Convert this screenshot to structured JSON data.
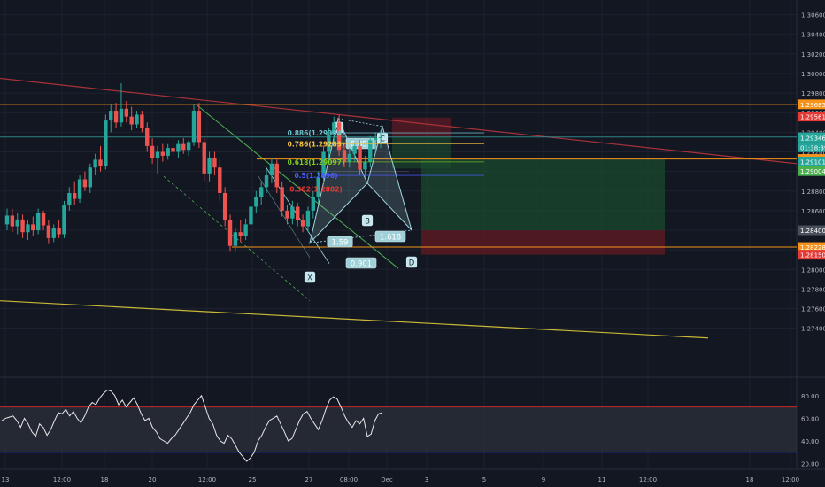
{
  "chart_data": {
    "type": "candlestick",
    "title": "",
    "xlabel": "",
    "ylabel": "",
    "colors": {
      "background": "#131722",
      "grid": "#1e2230",
      "axis_text": "#b2b5be",
      "up": "#26a69a",
      "down": "#ef5350",
      "orange": "#f7931a",
      "red": "#e53935",
      "green": "#4caf50",
      "trend_red": "#a8323a",
      "trend_yellow": "#c8b838",
      "harmonic_fill": "#9fd8e0",
      "rsi_line": "#e8e8e8",
      "rsi_upper": "#c62828",
      "rsi_lower": "#1e3fd8",
      "rsi_band": "#2a2e39"
    },
    "price_axis": {
      "ylim": [
        1.269,
        1.3075
      ],
      "ticks": [
        "1.30600",
        "1.30400",
        "1.30200",
        "1.30000",
        "1.29800",
        "1.29600",
        "1.29400",
        "1.29200",
        "1.29000",
        "1.28800",
        "1.28600",
        "1.28400",
        "1.28200",
        "1.28000",
        "1.27800",
        "1.27600",
        "1.27400"
      ],
      "labels": [
        {
          "text": "1.29685",
          "value": 1.29685,
          "color": "#f7931a"
        },
        {
          "text": "1.29561",
          "value": 1.29561,
          "color": "#e53935"
        },
        {
          "text": "1.29352",
          "value": 1.29352,
          "color": "#2f5d62"
        },
        {
          "text": "1.29346",
          "value": 1.29346,
          "color": "#26a69a"
        },
        {
          "text": "01:38:39",
          "value": 1.29247,
          "color": "#26a69a"
        },
        {
          "text": "1.29127",
          "value": 1.29127,
          "color": "#f7931a"
        },
        {
          "text": "1.29101",
          "value": 1.29101,
          "color": "#26a69a"
        },
        {
          "text": "1.29004",
          "value": 1.29004,
          "color": "#4caf50"
        },
        {
          "text": "1.28400",
          "value": 1.284,
          "color": "#4a4f5c"
        },
        {
          "text": "1.28228",
          "value": 1.28228,
          "color": "#f7931a"
        },
        {
          "text": "1.28150",
          "value": 1.2815,
          "color": "#e53935"
        }
      ]
    },
    "time_axis": {
      "labels": [
        "13",
        "12:00",
        "18",
        "20",
        "12:00",
        "25",
        "27",
        "08:00",
        "Dec",
        "3",
        "5",
        "9",
        "11",
        "12:00",
        "18",
        "12:00"
      ]
    },
    "horizontal_levels": [
      {
        "name": "upper-orange-level",
        "value": 1.29685,
        "color": "#f7931a"
      },
      {
        "name": "mid-orange-level",
        "value": 1.29127,
        "color": "#f7931a"
      },
      {
        "name": "lower-orange-level",
        "value": 1.28228,
        "color": "#f7931a"
      },
      {
        "name": "current-price-line",
        "value": 1.29352,
        "color": "#2f8f8f"
      }
    ],
    "fib_labels": [
      {
        "text": "0.886(1.29394)",
        "value": 1.29394,
        "color": "#6fc0c8"
      },
      {
        "text": "0.786(1.29283)",
        "value": 1.29283,
        "color": "#f5c542"
      },
      {
        "text": "0.618(1.29097)",
        "value": 1.29097,
        "color": "#7ecb20"
      },
      {
        "text": "0.5(1.2896)",
        "value": 1.2896,
        "color": "#4a5cff"
      },
      {
        "text": "0.382(1.2882)",
        "value": 1.2882,
        "color": "#e53935"
      }
    ],
    "pattern_points": [
      "X",
      "A",
      "B",
      "C",
      "D"
    ],
    "pattern_ratios": [
      "0.853",
      "1.59",
      "0.901",
      "1.618"
    ],
    "rsi": {
      "ylim": [
        15,
        90
      ],
      "ticks": [
        "80.00",
        "60.00",
        "40.00",
        "20.00"
      ],
      "upper": 70,
      "lower": 30,
      "values": [
        58,
        60,
        61,
        62,
        58,
        52,
        60,
        55,
        48,
        44,
        55,
        52,
        45,
        50,
        58,
        65,
        64,
        68,
        62,
        66,
        60,
        56,
        62,
        70,
        74,
        72,
        78,
        82,
        85,
        84,
        80,
        72,
        76,
        70,
        74,
        78,
        72,
        64,
        58,
        60,
        52,
        48,
        42,
        40,
        38,
        42,
        45,
        50,
        55,
        60,
        65,
        72,
        76,
        80,
        70,
        60,
        55,
        45,
        40,
        38,
        45,
        42,
        36,
        30,
        26,
        22,
        25,
        30,
        40,
        45,
        52,
        58,
        60,
        62,
        55,
        48,
        40,
        42,
        50,
        58,
        64,
        66,
        60,
        55,
        50,
        58,
        68,
        76,
        79,
        77,
        70,
        62,
        56,
        52,
        58,
        55,
        60,
        44,
        46,
        58,
        64,
        65
      ]
    },
    "candles": [
      {
        "o": 1.2846,
        "h": 1.2862,
        "l": 1.284,
        "c": 1.2855
      },
      {
        "o": 1.2855,
        "h": 1.2862,
        "l": 1.2838,
        "c": 1.2844
      },
      {
        "o": 1.2844,
        "h": 1.2858,
        "l": 1.2836,
        "c": 1.2851
      },
      {
        "o": 1.2851,
        "h": 1.2856,
        "l": 1.2832,
        "c": 1.2838
      },
      {
        "o": 1.2838,
        "h": 1.285,
        "l": 1.283,
        "c": 1.2846
      },
      {
        "o": 1.2846,
        "h": 1.2854,
        "l": 1.2834,
        "c": 1.284
      },
      {
        "o": 1.284,
        "h": 1.2862,
        "l": 1.2836,
        "c": 1.2858
      },
      {
        "o": 1.2858,
        "h": 1.286,
        "l": 1.284,
        "c": 1.2845
      },
      {
        "o": 1.2845,
        "h": 1.285,
        "l": 1.2826,
        "c": 1.2832
      },
      {
        "o": 1.2832,
        "h": 1.2846,
        "l": 1.2828,
        "c": 1.2842
      },
      {
        "o": 1.2842,
        "h": 1.285,
        "l": 1.2832,
        "c": 1.2836
      },
      {
        "o": 1.2836,
        "h": 1.287,
        "l": 1.2832,
        "c": 1.2866
      },
      {
        "o": 1.2866,
        "h": 1.2884,
        "l": 1.286,
        "c": 1.2878
      },
      {
        "o": 1.2878,
        "h": 1.289,
        "l": 1.2866,
        "c": 1.2872
      },
      {
        "o": 1.2872,
        "h": 1.2896,
        "l": 1.2868,
        "c": 1.2892
      },
      {
        "o": 1.2892,
        "h": 1.29,
        "l": 1.288,
        "c": 1.2884
      },
      {
        "o": 1.2884,
        "h": 1.2908,
        "l": 1.2878,
        "c": 1.2904
      },
      {
        "o": 1.2904,
        "h": 1.2918,
        "l": 1.2896,
        "c": 1.2912
      },
      {
        "o": 1.2912,
        "h": 1.2926,
        "l": 1.29,
        "c": 1.2906
      },
      {
        "o": 1.2906,
        "h": 1.2958,
        "l": 1.2902,
        "c": 1.2952
      },
      {
        "o": 1.2952,
        "h": 1.2968,
        "l": 1.294,
        "c": 1.2962
      },
      {
        "o": 1.2962,
        "h": 1.297,
        "l": 1.2944,
        "c": 1.295
      },
      {
        "o": 1.295,
        "h": 1.299,
        "l": 1.2946,
        "c": 1.2964
      },
      {
        "o": 1.2964,
        "h": 1.2972,
        "l": 1.295,
        "c": 1.2956
      },
      {
        "o": 1.2956,
        "h": 1.2966,
        "l": 1.2942,
        "c": 1.2948
      },
      {
        "o": 1.2948,
        "h": 1.2962,
        "l": 1.2944,
        "c": 1.2958
      },
      {
        "o": 1.2958,
        "h": 1.2962,
        "l": 1.294,
        "c": 1.2944
      },
      {
        "o": 1.2944,
        "h": 1.295,
        "l": 1.292,
        "c": 1.2926
      },
      {
        "o": 1.2926,
        "h": 1.2934,
        "l": 1.2908,
        "c": 1.2914
      },
      {
        "o": 1.2914,
        "h": 1.2926,
        "l": 1.2898,
        "c": 1.292
      },
      {
        "o": 1.292,
        "h": 1.2928,
        "l": 1.291,
        "c": 1.2916
      },
      {
        "o": 1.2916,
        "h": 1.2928,
        "l": 1.2912,
        "c": 1.2924
      },
      {
        "o": 1.2924,
        "h": 1.2934,
        "l": 1.2916,
        "c": 1.292
      },
      {
        "o": 1.292,
        "h": 1.2932,
        "l": 1.2914,
        "c": 1.2928
      },
      {
        "o": 1.2928,
        "h": 1.2934,
        "l": 1.2918,
        "c": 1.2922
      },
      {
        "o": 1.2922,
        "h": 1.2932,
        "l": 1.2916,
        "c": 1.293
      },
      {
        "o": 1.293,
        "h": 1.2968,
        "l": 1.2926,
        "c": 1.2962
      },
      {
        "o": 1.2962,
        "h": 1.297,
        "l": 1.2924,
        "c": 1.293
      },
      {
        "o": 1.293,
        "h": 1.2934,
        "l": 1.289,
        "c": 1.2898
      },
      {
        "o": 1.2898,
        "h": 1.292,
        "l": 1.289,
        "c": 1.2914
      },
      {
        "o": 1.2914,
        "h": 1.292,
        "l": 1.2896,
        "c": 1.2904
      },
      {
        "o": 1.2904,
        "h": 1.2912,
        "l": 1.287,
        "c": 1.2878
      },
      {
        "o": 1.2878,
        "h": 1.2884,
        "l": 1.2844,
        "c": 1.285
      },
      {
        "o": 1.285,
        "h": 1.2856,
        "l": 1.2818,
        "c": 1.2824
      },
      {
        "o": 1.2824,
        "h": 1.2842,
        "l": 1.2818,
        "c": 1.2838
      },
      {
        "o": 1.2838,
        "h": 1.285,
        "l": 1.2828,
        "c": 1.2834
      },
      {
        "o": 1.2834,
        "h": 1.2852,
        "l": 1.283,
        "c": 1.2846
      },
      {
        "o": 1.2846,
        "h": 1.287,
        "l": 1.284,
        "c": 1.2864
      },
      {
        "o": 1.2864,
        "h": 1.288,
        "l": 1.2858,
        "c": 1.2874
      },
      {
        "o": 1.2874,
        "h": 1.289,
        "l": 1.2866,
        "c": 1.2884
      },
      {
        "o": 1.2884,
        "h": 1.2902,
        "l": 1.2878,
        "c": 1.2896
      },
      {
        "o": 1.2896,
        "h": 1.2914,
        "l": 1.2888,
        "c": 1.2908
      },
      {
        "o": 1.2908,
        "h": 1.2912,
        "l": 1.2878,
        "c": 1.2884
      },
      {
        "o": 1.2884,
        "h": 1.289,
        "l": 1.2854,
        "c": 1.286
      },
      {
        "o": 1.286,
        "h": 1.2866,
        "l": 1.2846,
        "c": 1.2852
      },
      {
        "o": 1.2852,
        "h": 1.287,
        "l": 1.2846,
        "c": 1.2864
      },
      {
        "o": 1.2864,
        "h": 1.2868,
        "l": 1.2844,
        "c": 1.285
      },
      {
        "o": 1.285,
        "h": 1.2856,
        "l": 1.2838,
        "c": 1.2844
      },
      {
        "o": 1.2844,
        "h": 1.2864,
        "l": 1.2838,
        "c": 1.286
      },
      {
        "o": 1.286,
        "h": 1.288,
        "l": 1.2852,
        "c": 1.2874
      },
      {
        "o": 1.2874,
        "h": 1.29,
        "l": 1.2868,
        "c": 1.2894
      },
      {
        "o": 1.2894,
        "h": 1.2926,
        "l": 1.2888,
        "c": 1.292
      },
      {
        "o": 1.292,
        "h": 1.2944,
        "l": 1.2912,
        "c": 1.2938
      },
      {
        "o": 1.2938,
        "h": 1.2956,
        "l": 1.293,
        "c": 1.295
      },
      {
        "o": 1.295,
        "h": 1.2958,
        "l": 1.2916,
        "c": 1.2922
      },
      {
        "o": 1.2922,
        "h": 1.293,
        "l": 1.2904,
        "c": 1.291
      },
      {
        "o": 1.291,
        "h": 1.2924,
        "l": 1.2904,
        "c": 1.2918
      },
      {
        "o": 1.2918,
        "h": 1.293,
        "l": 1.291,
        "c": 1.2926
      },
      {
        "o": 1.2926,
        "h": 1.2932,
        "l": 1.2896,
        "c": 1.2902
      },
      {
        "o": 1.2902,
        "h": 1.2916,
        "l": 1.2894,
        "c": 1.291
      },
      {
        "o": 1.291,
        "h": 1.2936,
        "l": 1.2904,
        "c": 1.2932
      },
      {
        "o": 1.2932,
        "h": 1.294,
        "l": 1.292,
        "c": 1.2934
      },
      {
        "o": 1.2934,
        "h": 1.2942,
        "l": 1.2924,
        "c": 1.2935
      }
    ]
  }
}
